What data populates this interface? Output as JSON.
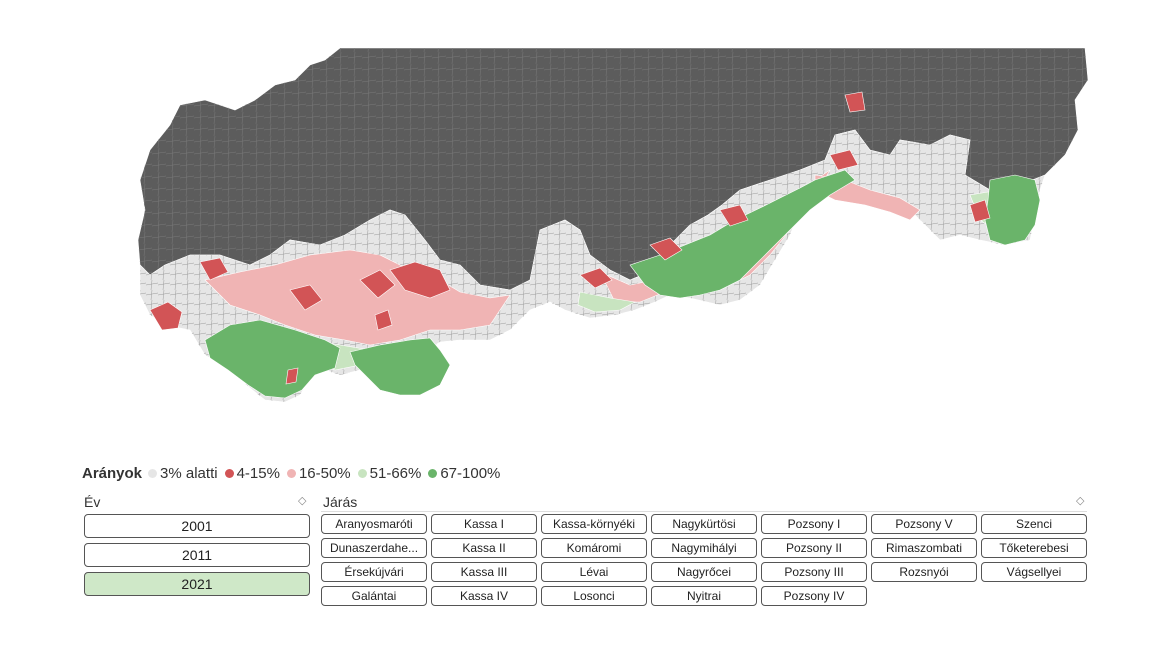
{
  "legend": {
    "title": "Arányok",
    "items": [
      {
        "label": "3% alatti",
        "color": "#e6e6e6"
      },
      {
        "label": "4-15%",
        "color": "#d25456"
      },
      {
        "label": "16-50%",
        "color": "#f0b4b4"
      },
      {
        "label": "51-66%",
        "color": "#c8e4c0"
      },
      {
        "label": "67-100%",
        "color": "#6ab46a"
      }
    ]
  },
  "colors": {
    "outside": "#5c5c5c",
    "border_line": "#888888",
    "selected_year": "#cfe8c8"
  },
  "year_slicer": {
    "title": "Év",
    "years": [
      "2001",
      "2011",
      "2021"
    ],
    "selected": "2021"
  },
  "district_slicer": {
    "title": "Járás",
    "items": [
      "Aranyosmaróti",
      "Kassa I",
      "Kassa-környéki",
      "Nagykürtösi",
      "Pozsony I",
      "Pozsony V",
      "Szenci",
      "Dunaszerdahe...",
      "Kassa II",
      "Komáromi",
      "Nagymihályi",
      "Pozsony II",
      "Rimaszombati",
      "Tőketerebesi",
      "Érsekújvári",
      "Kassa III",
      "Lévai",
      "Nagyrőcei",
      "Pozsony III",
      "Rozsnyói",
      "Vágsellyei",
      "Galántai",
      "Kassa IV",
      "Losonci",
      "Nyitrai",
      "Pozsony IV"
    ]
  }
}
